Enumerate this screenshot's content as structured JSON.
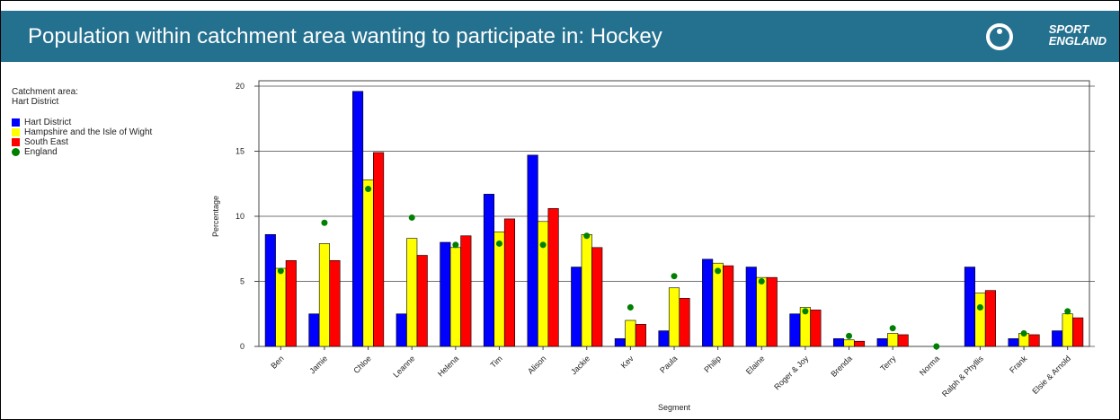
{
  "header": {
    "title": "Population within catchment area wanting to participate in: Hockey",
    "logo": [
      "SPORT",
      "ENGLAND"
    ]
  },
  "side": {
    "catchment_label": "Catchment area:",
    "catchment_value": "Hart District"
  },
  "chart_data": {
    "type": "bar",
    "ylabel": "Percentage",
    "xlabel": "Segment",
    "categories": [
      "Ben",
      "Jamie",
      "Chloe",
      "Leanne",
      "Helena",
      "Tim",
      "Alison",
      "Jackie",
      "Kev",
      "Paula",
      "Philip",
      "Elaine",
      "Roger & Joy",
      "Brenda",
      "Terry",
      "Norma",
      "Ralph & Phyllis",
      "Frank",
      "Elsie & Arnold"
    ],
    "series": [
      {
        "name": "Hart District",
        "color": "#0000ff",
        "values": [
          8.6,
          2.5,
          19.6,
          2.5,
          8.0,
          11.7,
          14.7,
          6.1,
          0.6,
          1.2,
          6.7,
          6.1,
          2.5,
          0.6,
          0.6,
          0,
          6.1,
          0.6,
          1.2
        ]
      },
      {
        "name": "Hampshire and the Isle of Wight",
        "color": "#ffff00",
        "values": [
          6.0,
          7.9,
          12.8,
          8.3,
          7.6,
          8.8,
          9.6,
          8.6,
          2.0,
          4.5,
          6.4,
          5.3,
          3.0,
          0.5,
          1.0,
          0,
          4.1,
          1.0,
          2.5
        ]
      },
      {
        "name": "South East",
        "color": "#ff0000",
        "values": [
          6.6,
          6.6,
          14.9,
          7.0,
          8.5,
          9.8,
          10.6,
          7.6,
          1.7,
          3.7,
          6.2,
          5.3,
          2.8,
          0.4,
          0.9,
          0,
          4.3,
          0.9,
          2.2
        ]
      },
      {
        "name": "England",
        "color": "#008000",
        "style": "marker",
        "values": [
          5.8,
          9.5,
          12.1,
          9.9,
          7.8,
          7.9,
          7.8,
          8.5,
          3.0,
          5.4,
          5.8,
          5.0,
          2.7,
          0.8,
          1.4,
          0.0,
          3.0,
          1.0,
          2.7
        ]
      }
    ],
    "ylim": [
      0,
      20
    ],
    "yticks": [
      0,
      5,
      10,
      15,
      20
    ],
    "grid": true
  }
}
